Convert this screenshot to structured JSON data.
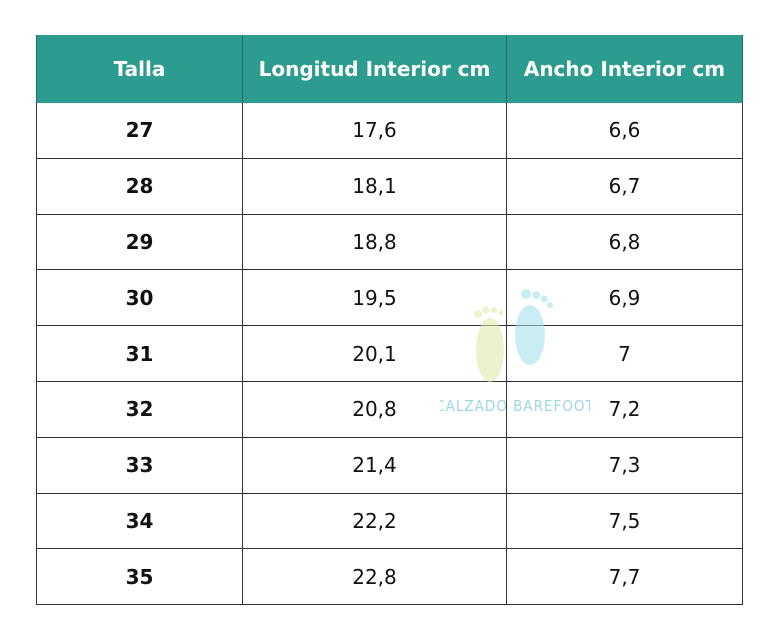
{
  "table": {
    "header": [
      "Talla",
      "Longitud Interior cm",
      "Ancho Interior cm"
    ],
    "rows": [
      [
        "27",
        "17,6",
        "6,6"
      ],
      [
        "28",
        "18,1",
        "6,7"
      ],
      [
        "29",
        "18,8",
        "6,8"
      ],
      [
        "30",
        "19,5",
        "6,9"
      ],
      [
        "31",
        "20,1",
        "7"
      ],
      [
        "32",
        "20,8",
        "7,2"
      ],
      [
        "33",
        "21,4",
        "7,3"
      ],
      [
        "34",
        "22,2",
        "7,5"
      ],
      [
        "35",
        "22,8",
        "7,7"
      ]
    ]
  },
  "watermark": "CALZADO BAREFOOT"
}
